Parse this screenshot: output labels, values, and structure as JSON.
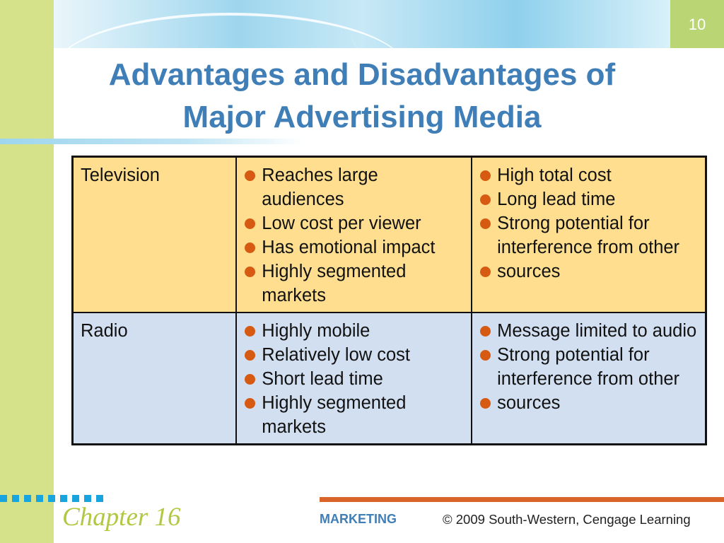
{
  "slide": {
    "number": "10",
    "title_lines": [
      "Advantages and Disadvantages of",
      "Major Advertising Media"
    ]
  },
  "table": {
    "rows": [
      {
        "medium": "Television",
        "advantages": [
          "Reaches large audiences",
          "Low cost per viewer",
          "Has emotional impact",
          "Highly segmented markets"
        ],
        "disadvantages": [
          "High total cost",
          "Long lead time",
          "Strong potential for interference from other",
          "sources"
        ]
      },
      {
        "medium": "Radio",
        "advantages": [
          "Highly mobile",
          "Relatively low cost",
          "Short lead time",
          "Highly segmented markets"
        ],
        "disadvantages": [
          "Message limited to audio",
          "Strong potential for interference from other",
          "sources"
        ]
      }
    ]
  },
  "footer": {
    "chapter": "Chapter 16",
    "brand": "MARKETING",
    "copyright": "© 2009 South-Western, Cengage Learning"
  },
  "colors": {
    "title": "#3f7eb6",
    "bullet": "#d65a12",
    "television_row": "#ffdf8f",
    "radio_row": "#d2dff0",
    "left_band": "#d6e28a",
    "footer_line": "#d9652b"
  }
}
